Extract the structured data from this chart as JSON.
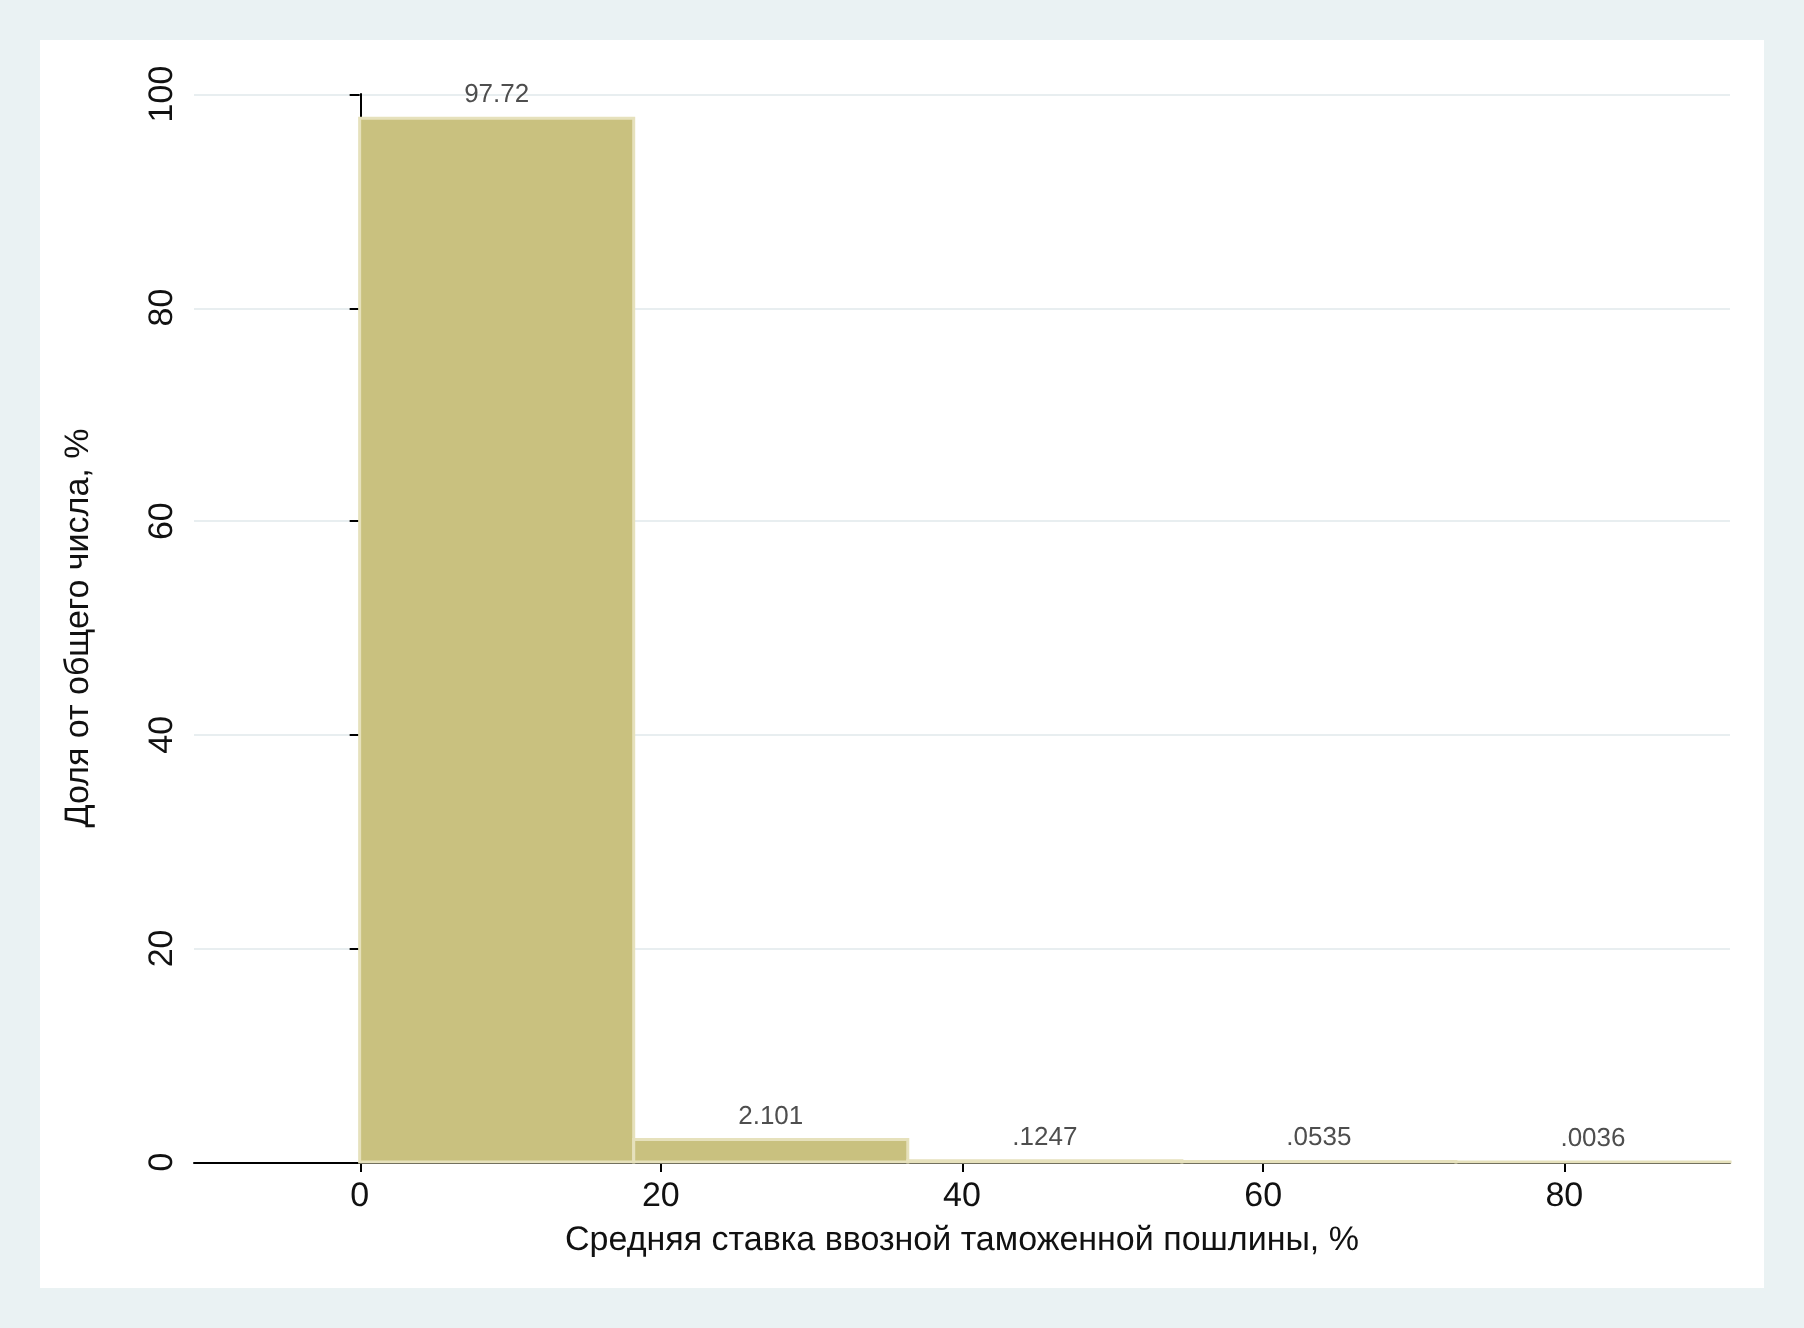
{
  "chart_data": {
    "type": "histogram",
    "xlabel": "Средняя ставка ввозной таможенной пошлины, %",
    "ylabel": "Доля от общего числа, %",
    "bins": [
      0,
      18.2,
      36.4,
      54.6,
      72.8,
      91
    ],
    "values": [
      97.72,
      2.101,
      0.1247,
      0.0535,
      0.0036
    ],
    "value_labels": [
      "97.72",
      "2.101",
      ".1247",
      ".0535",
      ".0036"
    ],
    "color": "#c9c17f",
    "xlim": [
      -11,
      91
    ],
    "xticks": [
      0,
      20,
      40,
      60,
      80
    ],
    "ylim": [
      0,
      100
    ],
    "yticks": [
      0,
      20,
      40,
      60,
      80,
      100
    ],
    "grid": "y"
  }
}
